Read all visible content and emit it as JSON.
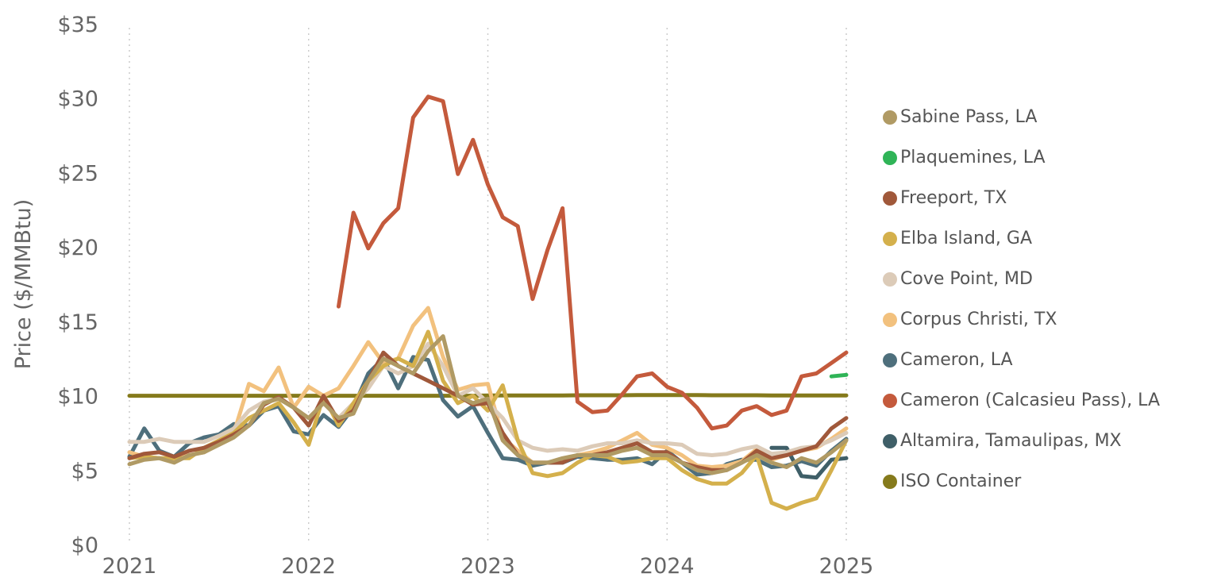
{
  "chart_data": {
    "type": "line",
    "y_label": "Price ($/MMBtu)",
    "x": [
      2021,
      2021.083,
      2021.167,
      2021.25,
      2021.333,
      2021.417,
      2021.5,
      2021.583,
      2021.667,
      2021.75,
      2021.833,
      2021.917,
      2022,
      2022.083,
      2022.167,
      2022.25,
      2022.333,
      2022.417,
      2022.5,
      2022.583,
      2022.667,
      2022.75,
      2022.833,
      2022.917,
      2023,
      2023.083,
      2023.167,
      2023.25,
      2023.333,
      2023.417,
      2023.5,
      2023.583,
      2023.667,
      2023.75,
      2023.833,
      2023.917,
      2024,
      2024.083,
      2024.167,
      2024.25,
      2024.333,
      2024.417,
      2024.5,
      2024.583,
      2024.667,
      2024.75,
      2024.833,
      2024.917,
      2025
    ],
    "xlim": [
      2021,
      2025
    ],
    "xticks": [
      2021,
      2022,
      2023,
      2024,
      2025
    ],
    "ylim": [
      0,
      35
    ],
    "yticks": [
      {
        "value": 0,
        "label": "$0"
      },
      {
        "value": 5,
        "label": "$5"
      },
      {
        "value": 10,
        "label": "$10"
      },
      {
        "value": 15,
        "label": "$15"
      },
      {
        "value": 20,
        "label": "$20"
      },
      {
        "value": 25,
        "label": "$25"
      },
      {
        "value": 30,
        "label": "$30"
      },
      {
        "value": 35,
        "label": "$35"
      }
    ],
    "grid": true,
    "series": [
      {
        "name": "Sabine Pass, LA",
        "color": "#b09a64",
        "values": [
          5.4,
          5.7,
          5.8,
          5.5,
          6,
          6.2,
          6.7,
          7.2,
          8,
          9.5,
          9.8,
          9.2,
          8.5,
          9.5,
          8.5,
          8.8,
          11,
          12.5,
          12,
          11.5,
          13,
          14,
          10,
          9.5,
          9.8,
          7,
          6,
          5.5,
          5.5,
          5.8,
          6,
          6,
          6,
          6.3,
          6.5,
          6,
          6,
          5.5,
          5,
          4.8,
          5,
          5.5,
          6,
          5.5,
          5.2,
          5.8,
          5.5,
          6.2,
          7
        ]
      },
      {
        "name": "Plaquemines, LA",
        "color": "#2fb457",
        "values": [
          null,
          null,
          null,
          null,
          null,
          null,
          null,
          null,
          null,
          null,
          null,
          null,
          null,
          null,
          null,
          null,
          null,
          null,
          null,
          null,
          null,
          null,
          null,
          null,
          null,
          null,
          null,
          null,
          null,
          null,
          null,
          null,
          null,
          null,
          null,
          null,
          null,
          null,
          null,
          null,
          null,
          null,
          null,
          null,
          null,
          null,
          null,
          11.3,
          11.4
        ]
      },
      {
        "name": "Freeport, TX",
        "color": "#a0583a",
        "values": [
          5.8,
          6.1,
          6.2,
          5.9,
          6.3,
          6.5,
          6.9,
          7.4,
          8,
          9.4,
          9.9,
          9.2,
          8,
          10,
          8.3,
          9,
          11,
          12.9,
          12,
          11.5,
          11,
          10.5,
          10,
          9.4,
          9.5,
          7.5,
          6,
          5.5,
          5.5,
          5.5,
          6,
          6,
          6.2,
          6.5,
          6.8,
          6.2,
          6.2,
          5.5,
          5.2,
          5,
          5,
          5.5,
          6.3,
          5.8,
          6,
          6.3,
          6.6,
          7.8,
          8.5
        ]
      },
      {
        "name": "Elba Island, GA",
        "color": "#d4b04c",
        "values": [
          5.8,
          5.9,
          5.8,
          5.8,
          5.8,
          6.5,
          7,
          7.5,
          8.5,
          9,
          9.5,
          8.2,
          6.7,
          10,
          8,
          9.5,
          11,
          12,
          12.5,
          12,
          14.3,
          11,
          9.5,
          10,
          9,
          10.7,
          7,
          4.8,
          4.6,
          4.8,
          5.5,
          6,
          5.9,
          5.5,
          5.6,
          5.8,
          5.8,
          5,
          4.4,
          4.1,
          4.1,
          4.8,
          6,
          2.8,
          2.4,
          2.8,
          3.1,
          5,
          7
        ]
      },
      {
        "name": "Cove Point, MD",
        "color": "#dccbb8",
        "values": [
          6.9,
          6.9,
          7.1,
          6.9,
          6.9,
          6.9,
          7.3,
          7.8,
          9,
          9.6,
          9.8,
          9.2,
          8.5,
          9.5,
          8.5,
          9.5,
          10.5,
          12,
          11.5,
          12,
          13.5,
          12,
          10,
          10.5,
          9.5,
          8.5,
          7,
          6.5,
          6.3,
          6.4,
          6.3,
          6.6,
          6.8,
          6.8,
          7,
          6.8,
          6.8,
          6.7,
          6.1,
          6,
          6.1,
          6.4,
          6.6,
          6.1,
          6.2,
          6.5,
          6.6,
          7,
          7.5
        ]
      },
      {
        "name": "Corpus Christi, TX",
        "color": "#f2c17e",
        "values": [
          6.2,
          5.9,
          5.8,
          5.7,
          6,
          6.2,
          6.8,
          7.5,
          10.8,
          10.3,
          11.9,
          9.2,
          10.6,
          10,
          10.5,
          12,
          13.6,
          12.2,
          12.5,
          14.7,
          15.9,
          12.6,
          10.4,
          10.7,
          10.8,
          7.2,
          6.3,
          5.5,
          5.5,
          5.6,
          6,
          6.2,
          6.5,
          7,
          7.5,
          6.7,
          6.5,
          6,
          5.3,
          5.2,
          5.3,
          5.6,
          6.4,
          5.7,
          6,
          6.3,
          6.5,
          7.1,
          7.8
        ]
      },
      {
        "name": "Cameron, LA",
        "color": "#4e6f7c",
        "values": [
          5.9,
          7.8,
          6.3,
          5.9,
          6.8,
          7.2,
          7.4,
          8.1,
          8,
          9,
          9.3,
          7.6,
          7.4,
          8.7,
          7.9,
          9.2,
          11.5,
          12.5,
          10.5,
          12.6,
          12.4,
          9.7,
          8.6,
          9.3,
          7.5,
          5.8,
          5.7,
          5.3,
          5.5,
          5.5,
          5.9,
          5.8,
          5.7,
          5.7,
          5.8,
          5.4,
          6.3,
          5.5,
          4.7,
          4.8,
          5.4,
          5.7,
          5.7,
          5.2,
          5.3,
          5.6,
          5.3,
          6.3,
          7.1
        ]
      },
      {
        "name": "Cameron (Calcasieu Pass), LA",
        "color": "#c45a3c",
        "values": [
          null,
          null,
          null,
          null,
          null,
          null,
          null,
          null,
          null,
          null,
          null,
          null,
          null,
          null,
          16,
          22.3,
          19.9,
          21.6,
          22.6,
          28.7,
          30.1,
          29.8,
          24.9,
          27.2,
          24.2,
          22,
          21.4,
          16.5,
          19.8,
          22.6,
          9.6,
          8.9,
          9,
          10.1,
          11.3,
          11.5,
          10.6,
          10.2,
          9.2,
          7.8,
          8,
          9,
          9.3,
          8.7,
          9,
          11.3,
          11.5,
          12.2,
          12.9
        ]
      },
      {
        "name": "Altamira, Tamaulipas, MX",
        "color": "#3f5f68",
        "values": [
          null,
          null,
          null,
          null,
          null,
          null,
          null,
          null,
          null,
          null,
          null,
          null,
          null,
          null,
          null,
          null,
          null,
          null,
          null,
          null,
          null,
          null,
          null,
          null,
          null,
          null,
          null,
          null,
          null,
          null,
          null,
          null,
          null,
          null,
          null,
          null,
          null,
          null,
          null,
          null,
          null,
          null,
          null,
          6.5,
          6.5,
          4.6,
          4.5,
          5.7,
          5.8
        ]
      },
      {
        "name": "ISO Container",
        "color": "#857a1c",
        "values": [
          10,
          10,
          10,
          10,
          10,
          10,
          10,
          10,
          10,
          10,
          10,
          10,
          10,
          10,
          10,
          10,
          10,
          10,
          10,
          10,
          10,
          10,
          10,
          10,
          10.02,
          10.02,
          10.02,
          10.02,
          10.02,
          10.02,
          10.03,
          10.03,
          10.03,
          10.03,
          10.04,
          10.04,
          10.04,
          10.04,
          10.04,
          10.03,
          10.03,
          10.03,
          10.03,
          10.02,
          10.02,
          10.02,
          10.02,
          10.02,
          10.02
        ]
      }
    ]
  }
}
